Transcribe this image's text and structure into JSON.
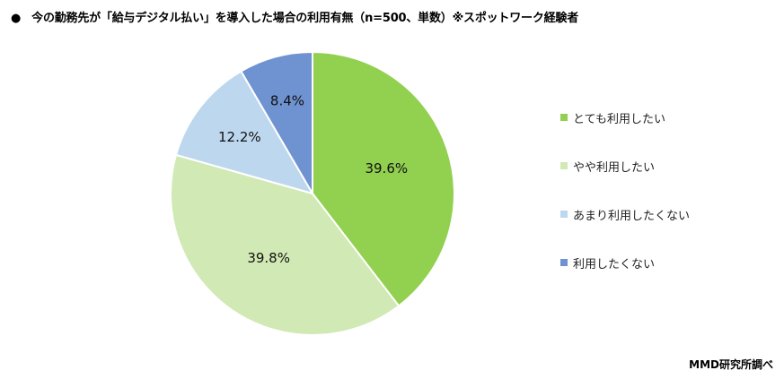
{
  "title": {
    "bullet": "●",
    "text": "今の勤務先が「給与デジタル払い」を導入した場合の利用有無（n=500、単数）※スポットワーク経験者"
  },
  "source": "MMD研究所調べ",
  "chart_data": {
    "type": "pie",
    "title": "今の勤務先が「給与デジタル払い」を導入した場合の利用有無（n=500、単数）※スポットワーク経験者",
    "categories": [
      "とても利用したい",
      "やや利用したい",
      "あまり利用したくない",
      "利用したくない"
    ],
    "values": [
      39.6,
      39.8,
      12.2,
      8.4
    ],
    "labels": [
      "39.6%",
      "39.8%",
      "12.2%",
      "8.4%"
    ],
    "colors": [
      "#92d050",
      "#d1e9b4",
      "#bdd7ee",
      "#6f92d1"
    ],
    "start_angle": "12 o'clock, clockwise",
    "legend_position": "right",
    "n": 500
  },
  "legend": [
    {
      "label": "とても利用したい",
      "color": "#92d050"
    },
    {
      "label": "やや利用したい",
      "color": "#d1e9b4"
    },
    {
      "label": "あまり利用したくない",
      "color": "#bdd7ee"
    },
    {
      "label": "利用したくない",
      "color": "#6f92d1"
    }
  ]
}
